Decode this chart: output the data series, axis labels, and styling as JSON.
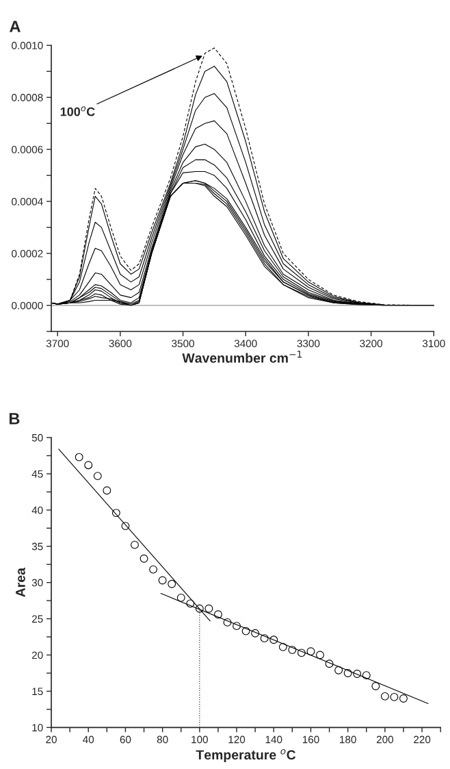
{
  "chart_data": [
    {
      "type": "line",
      "title": "A",
      "xlabel": "Wavenumber cm$^{−1}$",
      "x": [
        3710,
        3700,
        3680,
        3665,
        3650,
        3640,
        3630,
        3615,
        3600,
        3583,
        3570,
        3550,
        3520,
        3500,
        3480,
        3465,
        3450,
        3430,
        3400,
        3370,
        3340,
        3300,
        3260,
        3220,
        3180,
        3100
      ],
      "xlim": [
        3710,
        3100
      ],
      "xticks": [
        3700,
        3600,
        3500,
        3400,
        3300,
        3200,
        3100
      ],
      "ylim": [
        -0.0001,
        0.001
      ],
      "yticks": [
        {
          "value": -0.0001,
          "label": null
        },
        {
          "value": 0,
          "label": "0.0000"
        },
        {
          "value": 0.0001,
          "label": null
        },
        {
          "value": 0.0002,
          "label": "0.0002"
        },
        {
          "value": 0.0003,
          "label": null
        },
        {
          "value": 0.0004,
          "label": "0.0004"
        },
        {
          "value": 0.0005,
          "label": null
        },
        {
          "value": 0.0006,
          "label": "0.0006"
        },
        {
          "value": 0.0007,
          "label": null
        },
        {
          "value": 0.0008,
          "label": "0.0008"
        },
        {
          "value": 0.0009,
          "label": null
        },
        {
          "value": 0.001,
          "label": "0.0010"
        }
      ],
      "ref_lines": [
        {
          "axis": "y",
          "value": 0,
          "color": "#808080",
          "line_style": "solid"
        }
      ],
      "annotations": [
        {
          "text": "100$^{o}$C",
          "x": 3469,
          "y": 0.00096
        }
      ],
      "series": [
        {
          "color": "#000000",
          "line_style": "dashed",
          "values": [
            1e-05,
            5e-06,
            2e-05,
            0.00012,
            0.00033,
            0.00045,
            0.00042,
            0.0003,
            0.00019,
            0.000135,
            0.00016,
            0.0003,
            0.00049,
            0.00065,
            0.00086,
            0.00097,
            0.00099,
            0.00093,
            0.00068,
            0.00039,
            0.0002,
            0.0001,
            4e-05,
            1.5e-05,
            3e-06,
            0
          ]
        },
        {
          "color": "#000000",
          "line_style": "solid",
          "values": [
            1e-05,
            5e-06,
            2e-05,
            0.00011,
            0.0003,
            0.00042,
            0.00039,
            0.00027,
            0.00016,
            0.00012,
            0.00014,
            0.00028,
            0.00047,
            0.00062,
            0.00081,
            0.0009,
            0.00092,
            0.00086,
            0.00063,
            0.00036,
            0.00018,
            9e-05,
            3.5e-05,
            1.2e-05,
            2e-06,
            0
          ]
        },
        {
          "color": "#000000",
          "line_style": "solid",
          "values": [
            1e-05,
            5e-06,
            2e-05,
            9e-05,
            0.00024,
            0.00032,
            0.0003,
            0.00021,
            0.00012,
            9e-05,
            0.00011,
            0.00026,
            0.00046,
            0.0006,
            0.00075,
            0.0008,
            0.000815,
            0.00076,
            0.00055,
            0.00031,
            0.00016,
            8e-05,
            3e-05,
            1e-05,
            2e-06,
            0
          ]
        },
        {
          "color": "#000000",
          "line_style": "solid",
          "values": [
            1e-05,
            5e-06,
            2e-05,
            6e-05,
            0.00016,
            0.00022,
            0.00021,
            0.00015,
            8e-05,
            6e-05,
            8e-05,
            0.00024,
            0.00045,
            0.00058,
            0.00068,
            0.0007,
            0.00071,
            0.00066,
            0.00047,
            0.00027,
            0.00014,
            7e-05,
            2.5e-05,
            1e-05,
            2e-06,
            0
          ]
        },
        {
          "color": "#000000",
          "line_style": "solid",
          "values": [
            1e-05,
            5e-06,
            1.5e-05,
            4e-05,
            9e-05,
            0.000125,
            0.00012,
            8e-05,
            4e-05,
            3e-05,
            5e-05,
            0.00022,
            0.00044,
            0.00055,
            0.00061,
            0.00062,
            0.0006,
            0.00055,
            0.0004,
            0.00023,
            0.00012,
            6e-05,
            2e-05,
            8e-06,
            2e-06,
            0
          ]
        },
        {
          "color": "#000000",
          "line_style": "solid",
          "values": [
            1e-05,
            5e-06,
            1e-05,
            3e-05,
            6e-05,
            8e-05,
            7.5e-05,
            5e-05,
            2e-05,
            1e-05,
            3e-05,
            0.00021,
            0.00043,
            0.00053,
            0.00056,
            0.00056,
            0.00054,
            0.00049,
            0.00036,
            0.00021,
            0.00011,
            5e-05,
            1.8e-05,
            7e-06,
            1e-06,
            0
          ]
        },
        {
          "color": "#000000",
          "line_style": "solid",
          "values": [
            1e-05,
            5e-06,
            1e-05,
            3e-05,
            5e-05,
            7e-05,
            6.5e-05,
            4e-05,
            1.5e-05,
            5e-06,
            2e-05,
            0.0002,
            0.00043,
            0.00051,
            0.000515,
            0.000515,
            0.0005,
            0.00045,
            0.00033,
            0.00019,
            0.0001,
            4.5e-05,
            1.5e-05,
            6e-06,
            1e-06,
            0
          ]
        },
        {
          "color": "#000000",
          "line_style": "solid",
          "values": [
            1e-05,
            5e-06,
            1e-05,
            2e-05,
            4e-05,
            6e-05,
            5.5e-05,
            3e-05,
            1e-05,
            0,
            1.5e-05,
            0.0002,
            0.00042,
            0.00047,
            0.00048,
            0.00047,
            0.00045,
            0.00041,
            0.0003,
            0.00018,
            9e-05,
            4e-05,
            1.2e-05,
            5e-06,
            1e-06,
            0
          ]
        },
        {
          "color": "#000000",
          "line_style": "solid",
          "values": [
            1e-05,
            5e-06,
            1e-05,
            2e-05,
            3e-05,
            4.5e-05,
            4e-05,
            2e-05,
            5e-06,
            0,
            1e-05,
            0.0002,
            0.00042,
            0.00047,
            0.00048,
            0.00047,
            0.00044,
            0.0004,
            0.00029,
            0.00017,
            9e-05,
            4e-05,
            1.2e-05,
            4e-06,
            1e-06,
            0
          ]
        },
        {
          "color": "#000000",
          "line_style": "solid",
          "values": [
            1e-05,
            5e-06,
            1e-05,
            1.5e-05,
            2.5e-05,
            3.5e-05,
            3e-05,
            2.5e-05,
            1e-05,
            0,
            1e-05,
            0.0002,
            0.00042,
            0.00047,
            0.00047,
            0.000465,
            0.00043,
            0.00039,
            0.00028,
            0.00016,
            8e-05,
            3.5e-05,
            1e-05,
            4e-06,
            1e-06,
            0
          ]
        },
        {
          "color": "#000000",
          "line_style": "solid",
          "values": [
            1e-05,
            5e-06,
            1e-05,
            1e-05,
            1.5e-05,
            2e-05,
            2e-05,
            2e-05,
            1.5e-05,
            0,
            1e-05,
            0.0002,
            0.00042,
            0.00047,
            0.00047,
            0.00046,
            0.00042,
            0.00038,
            0.00027,
            0.00015,
            8e-05,
            3e-05,
            1e-05,
            3e-06,
            1e-06,
            0
          ]
        }
      ],
      "grid": false,
      "legend": false
    },
    {
      "type": "scatter",
      "title": "B",
      "xlabel": "Temperature $^{o}$C",
      "ylabel": "Area",
      "xlim": [
        20,
        230
      ],
      "xticks": [
        20,
        {
          "value": 30,
          "label": null
        },
        40,
        {
          "value": 50,
          "label": null
        },
        60,
        {
          "value": 70,
          "label": null
        },
        80,
        {
          "value": 90,
          "label": null
        },
        100,
        {
          "value": 110,
          "label": null
        },
        120,
        {
          "value": 130,
          "label": null
        },
        140,
        {
          "value": 150,
          "label": null
        },
        160,
        {
          "value": 170,
          "label": null
        },
        180,
        {
          "value": 190,
          "label": null
        },
        200,
        {
          "value": 210,
          "label": null
        },
        220,
        {
          "value": 230,
          "label": null
        }
      ],
      "ylim": [
        10,
        50
      ],
      "yticks": [
        10,
        {
          "value": 12.5,
          "label": null
        },
        15,
        {
          "value": 17.5,
          "label": null
        },
        20,
        {
          "value": 22.5,
          "label": null
        },
        25,
        {
          "value": 27.5,
          "label": null
        },
        30,
        {
          "value": 32.5,
          "label": null
        },
        35,
        {
          "value": 37.5,
          "label": null
        },
        40,
        {
          "value": 42.5,
          "label": null
        },
        45,
        {
          "value": 47.5,
          "label": null
        },
        50
      ],
      "series": [
        {
          "type": "scatter",
          "marker": "circle",
          "color": "#000000",
          "x": [
            35,
            40,
            45,
            50,
            55,
            60,
            65,
            70,
            75,
            80,
            85,
            90,
            95,
            100,
            105,
            110,
            115,
            120,
            125,
            130,
            135,
            140,
            145,
            150,
            155,
            160,
            165,
            170,
            175,
            180,
            185,
            190,
            195,
            200,
            205,
            210
          ],
          "values": [
            47.3,
            46.2,
            44.7,
            42.7,
            39.6,
            37.8,
            35.2,
            33.3,
            31.8,
            30.3,
            29.8,
            27.9,
            27.1,
            26.4,
            26.4,
            25.6,
            24.5,
            24.0,
            23.3,
            23.0,
            22.3,
            22.1,
            21.1,
            20.7,
            20.3,
            20.5,
            20.0,
            18.8,
            17.9,
            17.5,
            17.4,
            17.2,
            15.7,
            14.3,
            14.2,
            14.0
          ]
        },
        {
          "type": "line",
          "line_style": "solid",
          "color": "#000000",
          "x": [
            24,
            105.7
          ],
          "values": [
            48.4,
            24.7
          ]
        },
        {
          "type": "line",
          "line_style": "solid",
          "color": "#000000",
          "x": [
            79.1,
            223.3
          ],
          "values": [
            28.5,
            13.3
          ]
        },
        {
          "type": "line",
          "line_style": "dotted",
          "color": "#000000",
          "x": [
            100,
            100
          ],
          "values": [
            10,
            26.4
          ]
        }
      ],
      "grid": false,
      "legend": false
    }
  ]
}
